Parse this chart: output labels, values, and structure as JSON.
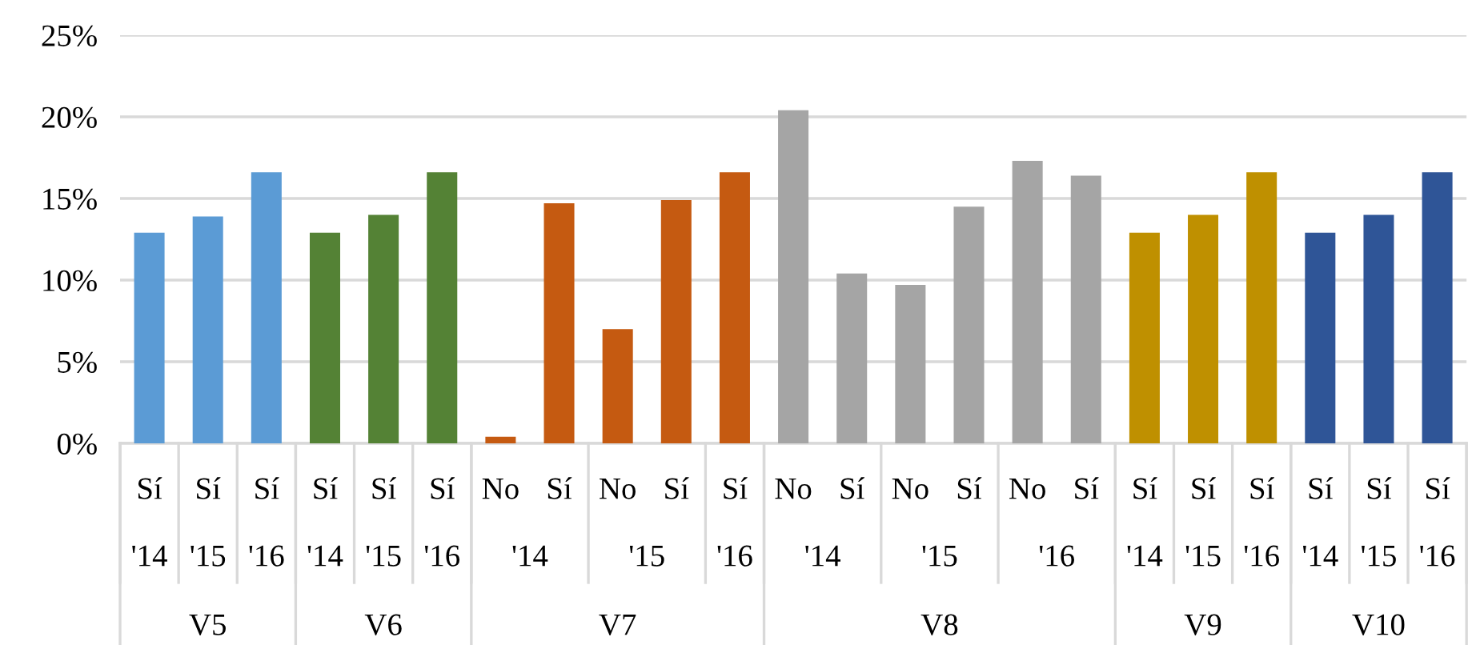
{
  "chart_data": {
    "type": "bar",
    "categories": [
      "Sí",
      "Sí",
      "Sí",
      "Sí",
      "Sí",
      "Sí",
      "No",
      "Sí",
      "No",
      "Sí",
      "Sí",
      "No",
      "Sí",
      "No",
      "Sí",
      "No",
      "Sí",
      "Sí",
      "Sí",
      "Sí",
      "Sí",
      "Sí",
      "Sí"
    ],
    "values": [
      12.9,
      13.9,
      16.6,
      12.9,
      14.0,
      16.6,
      0.4,
      14.7,
      7.0,
      14.9,
      16.6,
      20.4,
      10.4,
      9.7,
      14.5,
      17.3,
      16.4,
      12.9,
      14.0,
      16.6,
      12.9,
      14.0,
      16.6
    ],
    "colors": [
      "#5b9bd5",
      "#5b9bd5",
      "#5b9bd5",
      "#548235",
      "#548235",
      "#548235",
      "#c55a11",
      "#c55a11",
      "#c55a11",
      "#c55a11",
      "#c55a11",
      "#a5a5a5",
      "#a5a5a5",
      "#a5a5a5",
      "#a5a5a5",
      "#a5a5a5",
      "#a5a5a5",
      "#bf9000",
      "#bf9000",
      "#bf9000",
      "#2f5597",
      "#2f5597",
      "#2f5597"
    ],
    "annotations": [
      "'14",
      "'15",
      "'16",
      "'14",
      "'15",
      "'16",
      "'14",
      "'15",
      "'16",
      "'14",
      "'15",
      "'16",
      "'14",
      "'15",
      "'16",
      "'14",
      "'15",
      "'16",
      "V5",
      "V6",
      "V7",
      "V8",
      "V9",
      "V10"
    ],
    "ylim": [
      0,
      25
    ],
    "yticks": [
      {
        "value": 0,
        "label": "0%"
      },
      {
        "value": 5,
        "label": "5%"
      },
      {
        "value": 10,
        "label": "10%"
      },
      {
        "value": 15,
        "label": "15%"
      },
      {
        "value": 20,
        "label": "20%"
      },
      {
        "value": 25,
        "label": "25%"
      }
    ],
    "grid": "y"
  }
}
